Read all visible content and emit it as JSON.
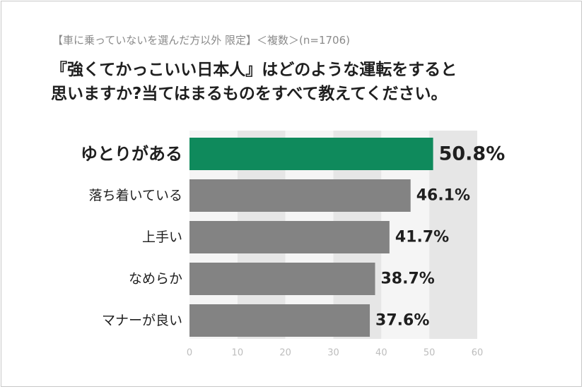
{
  "header": {
    "subtitle": "【車に乗っていないを選んだ方以外 限定】＜複数＞(n=1706)",
    "title_line1": "『強くてかっこいい日本人』はどのような運転をすると",
    "title_line2": "思いますか?当てはまるものをすべて教えてください。"
  },
  "chart_data": {
    "type": "bar",
    "orientation": "horizontal",
    "categories": [
      "ゆとりがある",
      "落ち着いている",
      "上手い",
      "なめらか",
      "マナーが良い"
    ],
    "values": [
      50.8,
      46.1,
      41.7,
      38.7,
      37.6
    ],
    "value_labels": [
      "50.8%",
      "46.1%",
      "41.7%",
      "38.7%",
      "37.6%"
    ],
    "xlim": [
      0,
      60
    ],
    "ticks": [
      0,
      10,
      20,
      30,
      40,
      50,
      60
    ],
    "tick_labels": [
      "0",
      "10",
      "20",
      "30",
      "40",
      "50",
      "60"
    ],
    "highlight_index": 0,
    "colors": {
      "highlight": "#0f8a5c",
      "bar": "#838383",
      "band_light": "#f5f5f5",
      "band_dark": "#e6e6e6"
    },
    "grid": "alternating vertical bands",
    "legend": "none"
  }
}
